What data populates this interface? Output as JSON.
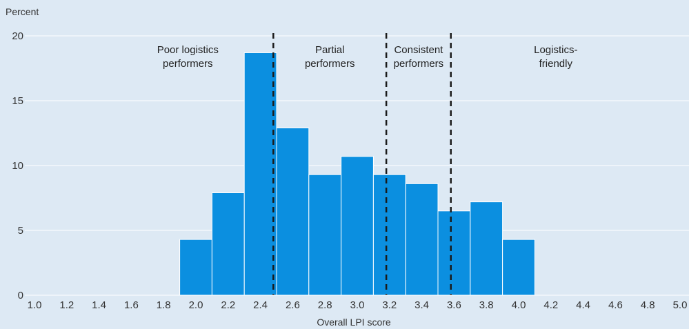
{
  "chart_data": {
    "type": "bar",
    "ylabel": "Percent",
    "xlabel": "Overall LPI score",
    "xlim": [
      1.0,
      5.0
    ],
    "ylim": [
      0,
      20
    ],
    "x_ticks": [
      "1.0",
      "1.2",
      "1.4",
      "1.6",
      "1.8",
      "2.0",
      "2.2",
      "2.4",
      "2.6",
      "2.8",
      "3.0",
      "3.2",
      "3.4",
      "3.6",
      "3.8",
      "4.0",
      "4.2",
      "4.4",
      "4.6",
      "4.8",
      "5.0"
    ],
    "y_ticks": [
      "0",
      "5",
      "10",
      "15",
      "20"
    ],
    "bins": [
      {
        "from": 1.9,
        "to": 2.1,
        "value": 4.3
      },
      {
        "from": 2.1,
        "to": 2.3,
        "value": 7.9
      },
      {
        "from": 2.3,
        "to": 2.5,
        "value": 18.7
      },
      {
        "from": 2.5,
        "to": 2.7,
        "value": 12.9
      },
      {
        "from": 2.7,
        "to": 2.9,
        "value": 9.3
      },
      {
        "from": 2.9,
        "to": 3.1,
        "value": 10.7
      },
      {
        "from": 3.1,
        "to": 3.3,
        "value": 9.3
      },
      {
        "from": 3.3,
        "to": 3.5,
        "value": 8.6
      },
      {
        "from": 3.5,
        "to": 3.7,
        "value": 6.5
      },
      {
        "from": 3.7,
        "to": 3.9,
        "value": 7.2
      },
      {
        "from": 3.9,
        "to": 4.1,
        "value": 4.3
      }
    ],
    "thresholds": [
      2.48,
      3.18,
      3.58
    ],
    "regions": [
      {
        "lines": [
          "Poor logistics",
          "performers"
        ],
        "x_center": 1.95
      },
      {
        "lines": [
          "Partial",
          "performers"
        ],
        "x_center": 2.83
      },
      {
        "lines": [
          "Consistent",
          "performers"
        ],
        "x_center": 3.38
      },
      {
        "lines": [
          "Logistics-",
          "friendly"
        ],
        "x_center": 4.23
      }
    ],
    "grid": true,
    "colors": {
      "background": "#dde9f4",
      "bar": "#0b8fe0",
      "bar_edge": "#ffffff",
      "grid": "#ffffff",
      "threshold": "#1a1a1a",
      "text": "#333333"
    }
  }
}
